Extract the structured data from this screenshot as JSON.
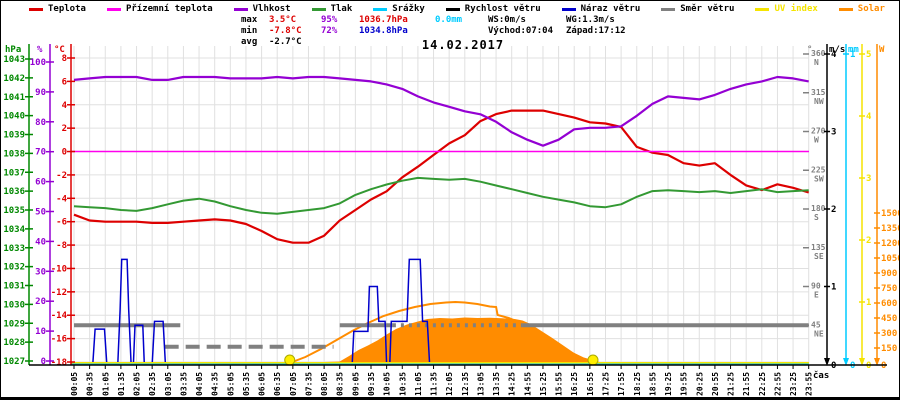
{
  "title_date": "14.02.2017",
  "x_axis_label": "čas",
  "legend": {
    "items": [
      {
        "id": "temperature",
        "label": "Teplota",
        "color": "#dd0000",
        "label_color": "#000000"
      },
      {
        "id": "ground-temperature",
        "label": "Přízemní teplota",
        "color": "#ff00ee",
        "label_color": "#000000"
      },
      {
        "id": "humidity",
        "label": "Vlhkost",
        "color": "#9400d3",
        "label_color": "#000000"
      },
      {
        "id": "pressure",
        "label": "Tlak",
        "color": "#339933",
        "label_color": "#000000"
      },
      {
        "id": "precipitation",
        "label": "Srážky",
        "color": "#00ccff",
        "label_color": "#000000"
      },
      {
        "id": "wind-speed",
        "label": "Rychlost větru",
        "color": "#000000",
        "label_color": "#000000"
      },
      {
        "id": "wind-gust",
        "label": "Náraz větru",
        "color": "#0000cc",
        "label_color": "#000000"
      },
      {
        "id": "wind-direction",
        "label": "Směr větru",
        "color": "#808080",
        "label_color": "#000000"
      },
      {
        "id": "uv-index",
        "label": "UV index",
        "color": "#f5e400",
        "label_color": "#f5e400"
      },
      {
        "id": "solar",
        "label": "Solar",
        "color": "#ff8c00",
        "label_color": "#ff8c00"
      }
    ]
  },
  "stats_left": {
    "rows": [
      {
        "label": "max",
        "values": [
          {
            "text": "3.5°C",
            "color": "#dd0000"
          },
          {
            "text": "95%",
            "color": "#9400d3"
          },
          {
            "text": "1036.7hPa",
            "color": "#dd0000"
          },
          {
            "text": "0.0mm",
            "color": "#00ccff"
          }
        ]
      },
      {
        "label": "min",
        "values": [
          {
            "text": "-7.8°C",
            "color": "#dd0000"
          },
          {
            "text": "72%",
            "color": "#9400d3"
          },
          {
            "text": "1034.8hPa",
            "color": "#0000cc"
          }
        ]
      },
      {
        "label": "avg",
        "values": [
          {
            "text": "-2.7°C",
            "color": "#000000"
          }
        ]
      }
    ]
  },
  "stats_right": {
    "rows": [
      [
        {
          "text": "WS:0m/s"
        },
        {
          "text": "WG:1.3m/s"
        }
      ],
      [
        {
          "text": "Východ:07:04"
        },
        {
          "text": "Západ:17:12"
        }
      ]
    ]
  },
  "chart_data": {
    "type": "line",
    "title": "14.02.2017",
    "x_tick_labels": [
      "00:05",
      "00:35",
      "01:05",
      "01:35",
      "02:05",
      "02:35",
      "03:05",
      "03:35",
      "04:05",
      "04:35",
      "05:05",
      "05:35",
      "06:05",
      "06:35",
      "07:05",
      "07:35",
      "08:05",
      "08:35",
      "09:05",
      "09:35",
      "10:05",
      "10:35",
      "11:05",
      "11:35",
      "12:05",
      "12:35",
      "13:05",
      "13:35",
      "14:25",
      "14:55",
      "15:25",
      "15:55",
      "16:25",
      "16:55",
      "17:25",
      "17:55",
      "18:25",
      "18:55",
      "19:25",
      "19:55",
      "20:25",
      "20:55",
      "21:25",
      "21:55",
      "22:25",
      "22:55",
      "23:25",
      "23:55"
    ],
    "y_axes_left": [
      {
        "id": "pressure",
        "unit": "hPa",
        "color": "#008800",
        "range": [
          1027,
          1043
        ],
        "ticks": [
          1043,
          1042,
          1041,
          1040,
          1039,
          1038,
          1037,
          1036,
          1035,
          1034,
          1033,
          1032,
          1031,
          1030,
          1029,
          1028,
          1027
        ]
      },
      {
        "id": "humidity",
        "unit": "%",
        "color": "#9400d3",
        "range": [
          0,
          100
        ],
        "ticks": [
          100,
          90,
          80,
          70,
          60,
          50,
          40,
          30,
          20,
          10,
          0
        ]
      },
      {
        "id": "temperature",
        "unit": "°C",
        "color": "#dd0000",
        "range": [
          -18,
          8
        ],
        "ticks": [
          8,
          6,
          4,
          2,
          0,
          -2,
          -4,
          -6,
          -8,
          -10,
          -12,
          -14,
          -16,
          -18
        ]
      }
    ],
    "y_axes_right": [
      {
        "id": "wind-direction",
        "unit": "°",
        "color": "#808080",
        "range": [
          0,
          360
        ],
        "ticks": [
          {
            "deg": 360,
            "dir": "N"
          },
          {
            "deg": 315,
            "dir": "NW"
          },
          {
            "deg": 270,
            "dir": "W"
          },
          {
            "deg": 225,
            "dir": "SW"
          },
          {
            "deg": 180,
            "dir": "S"
          },
          {
            "deg": 135,
            "dir": "SE"
          },
          {
            "deg": 90,
            "dir": "E"
          },
          {
            "deg": 45,
            "dir": "NE"
          }
        ]
      },
      {
        "id": "wind-speed",
        "unit": "m/s",
        "color": "#000000",
        "range": [
          0,
          4
        ],
        "ticks": [
          4,
          3,
          2,
          1,
          0
        ]
      },
      {
        "id": "precipitation",
        "unit": "mm",
        "color": "#00ccff",
        "range": [
          0,
          1
        ],
        "ticks": [
          1,
          0
        ]
      },
      {
        "id": "uv-index",
        "unit": "",
        "color": "#f5e400",
        "range": [
          0,
          5
        ],
        "ticks": [
          5,
          4,
          3,
          2,
          1,
          0
        ]
      },
      {
        "id": "solar",
        "unit": "W",
        "color": "#ff8c00",
        "range": [
          0,
          1500
        ],
        "ticks": [
          1500,
          1350,
          1200,
          1050,
          900,
          750,
          600,
          450,
          300,
          150,
          0
        ]
      }
    ],
    "series": [
      {
        "id": "temperature",
        "name": "Teplota",
        "unit": "°C",
        "axis": "temperature",
        "color": "#dd0000",
        "width": 2.2,
        "values": [
          -5.4,
          -5.9,
          -6,
          -6,
          -6,
          -6.1,
          -6.1,
          -6,
          -5.9,
          -5.8,
          -5.9,
          -6.2,
          -6.8,
          -7.5,
          -7.8,
          -7.8,
          -7.2,
          -5.9,
          -5,
          -4.1,
          -3.4,
          -2.2,
          -1.3,
          -0.3,
          0.7,
          1.4,
          2.6,
          3.2,
          3.5,
          3.5,
          3.5,
          3.2,
          2.9,
          2.5,
          2.4,
          2.1,
          0.4,
          -0.1,
          -0.3,
          -1,
          -1.2,
          -1,
          -2,
          -2.9,
          -3.3,
          -2.8,
          -3.1,
          -3.5
        ]
      },
      {
        "id": "ground-temperature",
        "name": "Přízemní teplota",
        "unit": "°C",
        "axis": "temperature",
        "color": "#ff00ee",
        "width": 1.6,
        "constant": 0
      },
      {
        "id": "humidity",
        "name": "Vlhkost",
        "unit": "%",
        "axis": "humidity",
        "color": "#9400d3",
        "width": 2.2,
        "values": [
          94,
          94.5,
          95,
          95,
          95,
          94,
          94,
          95,
          95,
          95,
          94.5,
          94.5,
          94.5,
          95,
          94.5,
          95,
          95,
          94.5,
          94,
          93.5,
          92.5,
          91,
          88.5,
          86.5,
          85,
          83.5,
          82.5,
          80,
          76.5,
          74,
          72,
          74,
          77.5,
          78,
          78,
          78.5,
          82,
          86,
          88.5,
          88,
          87.5,
          89,
          91,
          92.5,
          93.5,
          95,
          94.5,
          93.5
        ]
      },
      {
        "id": "pressure",
        "name": "Tlak",
        "unit": "hPa",
        "axis": "pressure",
        "color": "#339933",
        "width": 2,
        "values": [
          1035.2,
          1035.15,
          1035.1,
          1035,
          1034.95,
          1035.1,
          1035.3,
          1035.5,
          1035.6,
          1035.45,
          1035.2,
          1035,
          1034.85,
          1034.8,
          1034.9,
          1035,
          1035.1,
          1035.35,
          1035.8,
          1036.1,
          1036.35,
          1036.55,
          1036.7,
          1036.65,
          1036.6,
          1036.65,
          1036.5,
          1036.3,
          1036.1,
          1035.9,
          1035.7,
          1035.55,
          1035.4,
          1035.2,
          1035.15,
          1035.3,
          1035.7,
          1036,
          1036.05,
          1036,
          1035.95,
          1036,
          1035.9,
          1036,
          1036.1,
          1035.95,
          1036,
          1036.05
        ]
      },
      {
        "id": "wind-speed",
        "name": "Rychlost větru",
        "unit": "m/s",
        "axis": "wind-speed",
        "color": "#000000",
        "width": 1,
        "constant": 0
      },
      {
        "id": "uv-index",
        "name": "UV index",
        "unit": "",
        "axis": "uv-index",
        "color": "#f5e400",
        "width": 2,
        "constant": 0
      },
      {
        "id": "precipitation",
        "name": "Srážky",
        "unit": "mm",
        "axis": "precipitation",
        "color": "#00ccff",
        "width": 1,
        "constant": 0
      }
    ],
    "wind_gust": {
      "id": "wind-gust",
      "name": "Náraz větru",
      "unit": "m/s",
      "color": "#0000cc",
      "max": 1.3,
      "points": [
        [
          0,
          0
        ],
        [
          1.2,
          0
        ],
        [
          1.35,
          0.45
        ],
        [
          1.95,
          0.45
        ],
        [
          2.1,
          0
        ],
        [
          2.8,
          0
        ],
        [
          2.95,
          0.7
        ],
        [
          3.05,
          1.35
        ],
        [
          3.4,
          1.35
        ],
        [
          3.5,
          0.7
        ],
        [
          3.65,
          0
        ],
        [
          3.8,
          0
        ],
        [
          3.9,
          0.5
        ],
        [
          4.4,
          0.5
        ],
        [
          4.5,
          0
        ],
        [
          5,
          0
        ],
        [
          5.15,
          0.55
        ],
        [
          5.7,
          0.55
        ],
        [
          5.85,
          0
        ],
        [
          17.8,
          0
        ],
        [
          17.9,
          0.42
        ],
        [
          18.8,
          0.42
        ],
        [
          18.9,
          1
        ],
        [
          19.4,
          1
        ],
        [
          19.5,
          0.55
        ],
        [
          19.9,
          0.55
        ],
        [
          20,
          0
        ],
        [
          20.2,
          0
        ],
        [
          20.3,
          0.55
        ],
        [
          21.3,
          0.55
        ],
        [
          21.45,
          1.35
        ],
        [
          22.15,
          1.35
        ],
        [
          22.3,
          0.55
        ],
        [
          22.6,
          0.55
        ],
        [
          22.75,
          0
        ],
        [
          47,
          0
        ]
      ]
    },
    "wind_direction": {
      "id": "wind-direction",
      "name": "Směr větru",
      "color": "#808080",
      "segments": [
        {
          "from": 0,
          "to": 6.8,
          "deg": 45,
          "style": "solid"
        },
        {
          "from": 5.8,
          "to": 16.6,
          "deg": 20,
          "style": "dash"
        },
        {
          "from": 17,
          "to": 20.4,
          "deg": 45,
          "style": "solid"
        },
        {
          "from": 20.4,
          "to": 28.7,
          "deg": 45,
          "style": "dot"
        },
        {
          "from": 28.7,
          "to": 47,
          "deg": 45,
          "style": "solid"
        }
      ]
    },
    "solar": {
      "id": "solar",
      "name": "Solar",
      "unit": "W",
      "color": "#ff8c00",
      "measured_area": [
        [
          13.9,
          0
        ],
        [
          17,
          15
        ],
        [
          17.6,
          70
        ],
        [
          18.2,
          130
        ],
        [
          18.8,
          175
        ],
        [
          19.4,
          225
        ],
        [
          20,
          285
        ],
        [
          20.6,
          340
        ],
        [
          21.3,
          385
        ],
        [
          22,
          415
        ],
        [
          22.6,
          440
        ],
        [
          23.4,
          450
        ],
        [
          24.2,
          445
        ],
        [
          25,
          455
        ],
        [
          25.8,
          450
        ],
        [
          26.6,
          452
        ],
        [
          27.4,
          448
        ],
        [
          28.2,
          440
        ],
        [
          28.7,
          425
        ],
        [
          29.2,
          390
        ],
        [
          29.9,
          320
        ],
        [
          30.6,
          250
        ],
        [
          31.3,
          175
        ],
        [
          32,
          100
        ],
        [
          32.8,
          35
        ],
        [
          33.5,
          0
        ]
      ],
      "max_line": [
        [
          13.8,
          0
        ],
        [
          14.8,
          60
        ],
        [
          15.8,
          140
        ],
        [
          16.8,
          230
        ],
        [
          17.8,
          320
        ],
        [
          18.8,
          400
        ],
        [
          19.8,
          470
        ],
        [
          20.8,
          520
        ],
        [
          21.8,
          560
        ],
        [
          22.8,
          590
        ],
        [
          23.8,
          605
        ],
        [
          24.4,
          610
        ],
        [
          25,
          605
        ],
        [
          25.8,
          590
        ],
        [
          26.6,
          565
        ],
        [
          27,
          560
        ],
        [
          27.1,
          480
        ],
        [
          27.8,
          450
        ],
        [
          28.6,
          400
        ],
        [
          29.4,
          330
        ],
        [
          30.2,
          255
        ],
        [
          31,
          180
        ],
        [
          31.8,
          105
        ],
        [
          32.6,
          45
        ],
        [
          33.6,
          0
        ]
      ]
    },
    "sun_markers": {
      "sunrise_label": "07:04",
      "sunset_label": "17:12",
      "sunrise_t": 13.8,
      "sunset_t": 33.2,
      "color": "#ffee00"
    }
  }
}
